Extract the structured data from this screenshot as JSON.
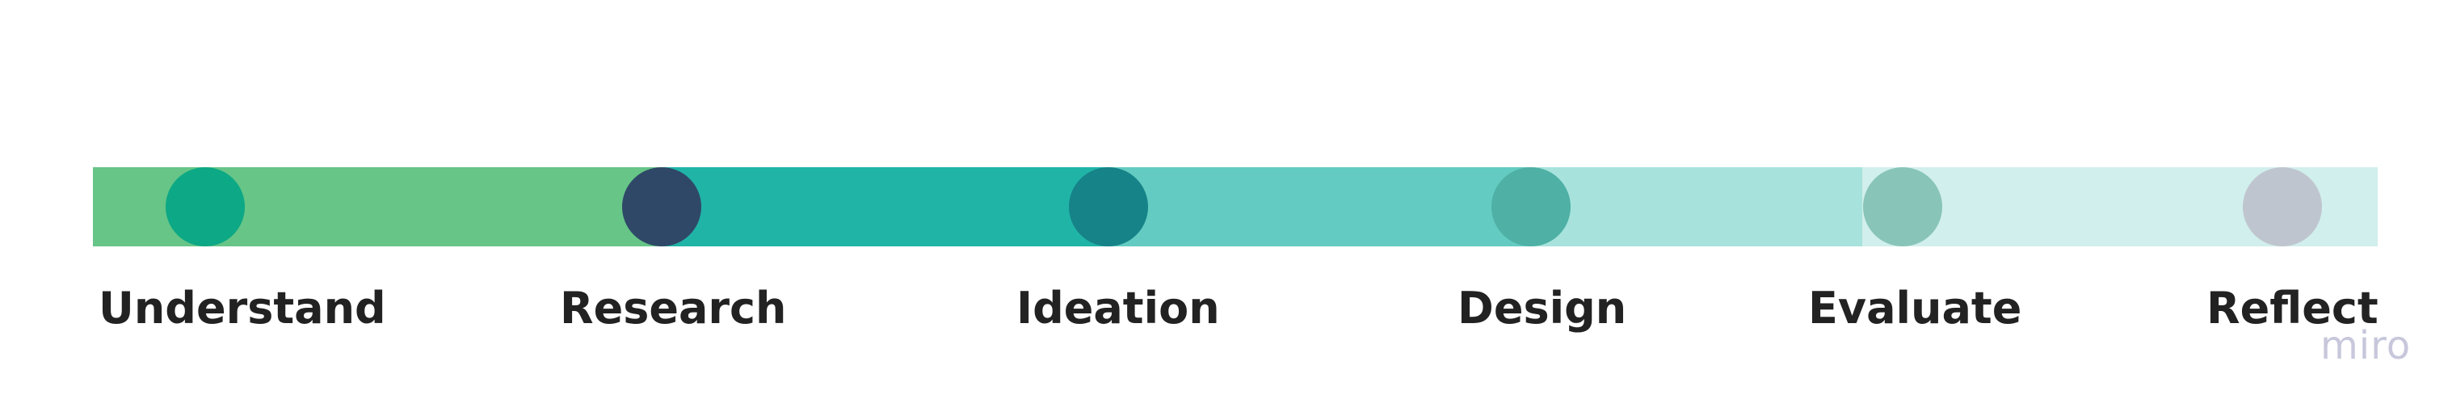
{
  "stages": [
    {
      "label": "Understand",
      "bar_color": "#66c587",
      "dot_color": "#0da885"
    },
    {
      "label": "Research",
      "bar_color": "#20b4a7",
      "dot_color": "#2f4868"
    },
    {
      "label": "Ideation",
      "bar_color": "#63cbc1",
      "dot_color": "#168388"
    },
    {
      "label": "Design",
      "bar_color": "#a7e3dc",
      "dot_color": "#4fb0a5"
    },
    {
      "label": "Evaluate",
      "bar_color": "#d1efec",
      "dot_color": "#89c4b9"
    },
    {
      "label": "Reflect",
      "bar_color": "#d1efec",
      "dot_color": "#bfc5cf"
    }
  ],
  "watermark": "miro"
}
